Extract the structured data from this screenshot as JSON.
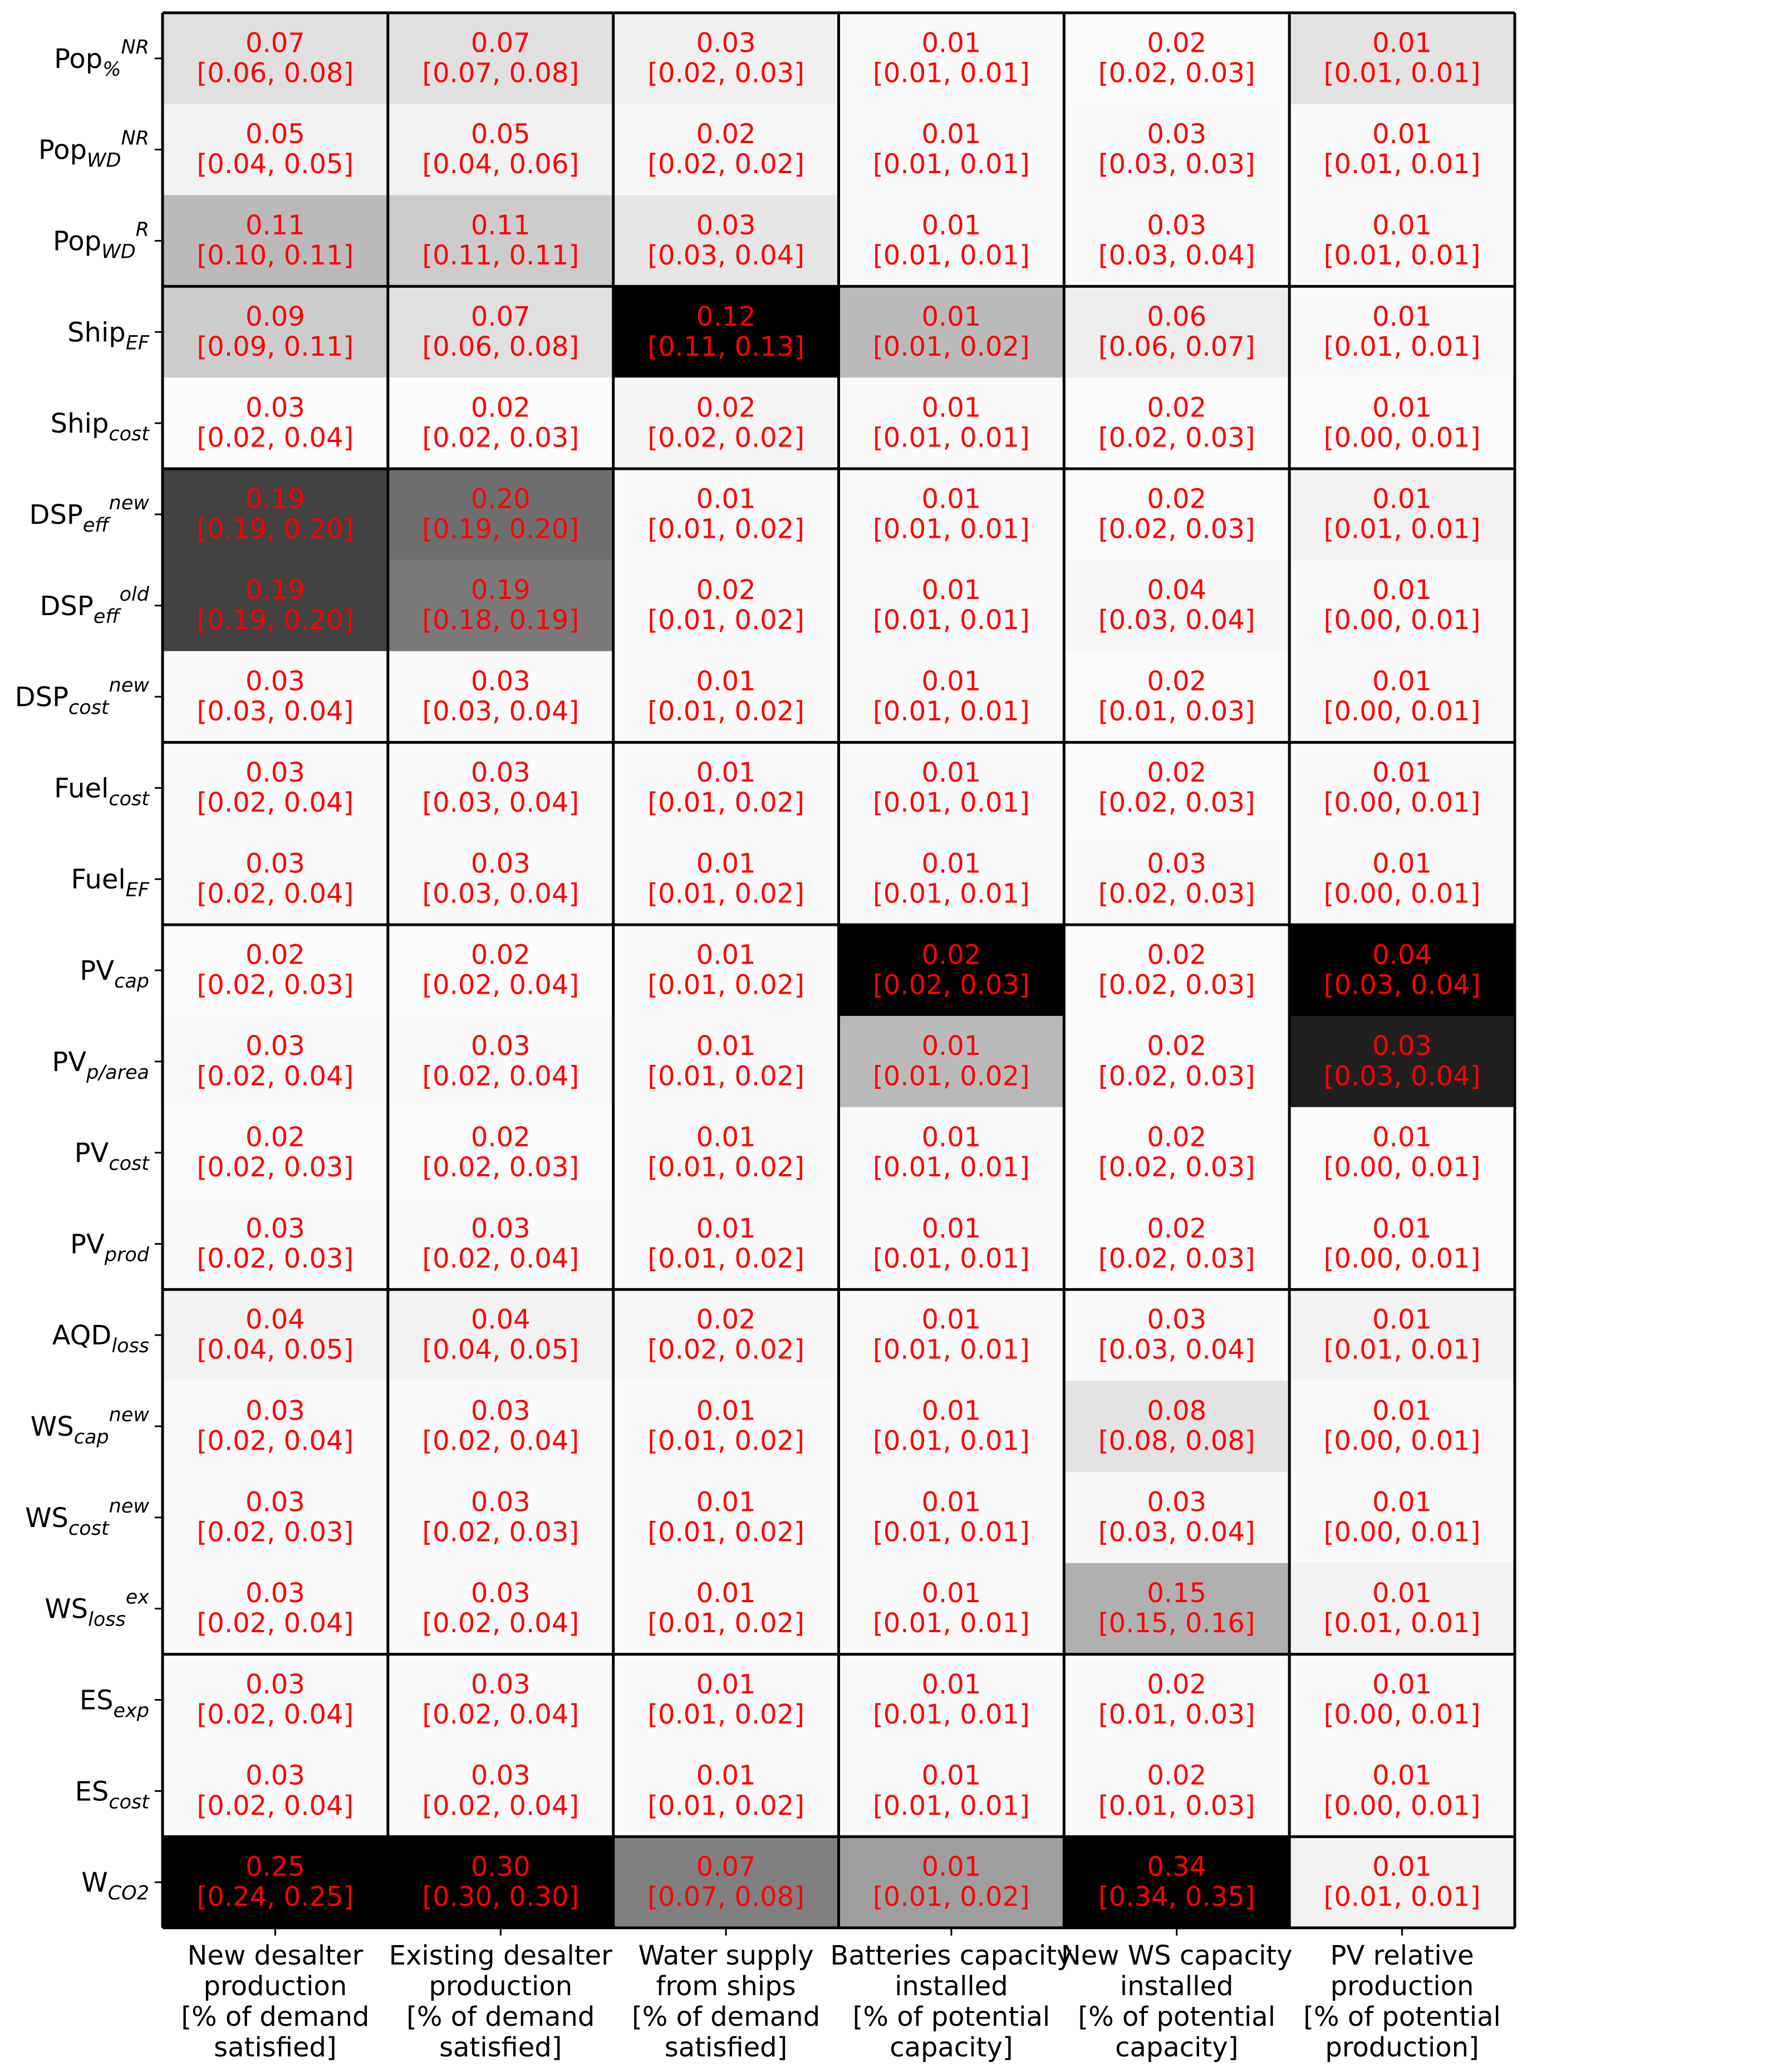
{
  "chart_data": {
    "type": "heatmap",
    "color_scale": "grayscale (white = low, black = high), scaled per column",
    "value_color": "#ff0000",
    "grid_color": "#000000",
    "row_groups": [
      3,
      2,
      3,
      2,
      4,
      4,
      2,
      1
    ],
    "rows": [
      {
        "base": "Pop",
        "sub": "%",
        "sup": "NR"
      },
      {
        "base": "Pop",
        "sub": "WD",
        "sup": "NR"
      },
      {
        "base": "Pop",
        "sub": "WD",
        "sup": "R"
      },
      {
        "base": "Ship",
        "sub": "EF",
        "sup": ""
      },
      {
        "base": "Ship",
        "sub": "cost",
        "sup": ""
      },
      {
        "base": "DSP",
        "sub": "eff",
        "sup": "new"
      },
      {
        "base": "DSP",
        "sub": "eff",
        "sup": "old"
      },
      {
        "base": "DSP",
        "sub": "cost",
        "sup": "new"
      },
      {
        "base": "Fuel",
        "sub": "cost",
        "sup": ""
      },
      {
        "base": "Fuel",
        "sub": "EF",
        "sup": ""
      },
      {
        "base": "PV",
        "sub": "cap",
        "sup": ""
      },
      {
        "base": "PV",
        "sub": "p/area",
        "sup": ""
      },
      {
        "base": "PV",
        "sub": "cost",
        "sup": ""
      },
      {
        "base": "PV",
        "sub": "prod",
        "sup": ""
      },
      {
        "base": "AQD",
        "sub": "loss",
        "sup": ""
      },
      {
        "base": "WS",
        "sub": "cap",
        "sup": "new"
      },
      {
        "base": "WS",
        "sub": "cost",
        "sup": "new"
      },
      {
        "base": "WS",
        "sub": "loss",
        "sup": "ex"
      },
      {
        "base": "ES",
        "sub": "exp",
        "sup": ""
      },
      {
        "base": "ES",
        "sub": "cost",
        "sup": ""
      },
      {
        "base": "W",
        "sub": "CO2",
        "sup": ""
      }
    ],
    "columns": [
      [
        "New desalter",
        "production",
        "[% of demand",
        "satisfied]"
      ],
      [
        "Existing desalter",
        "production",
        "[% of demand",
        "satisfied]"
      ],
      [
        "Water supply",
        "from ships",
        "[% of demand",
        "satisfied]"
      ],
      [
        "Batteries capacity",
        "installed",
        "[% of potential",
        "capacity]"
      ],
      [
        "New WS capacity",
        "installed",
        "[% of potential",
        "capacity]"
      ],
      [
        "PV relative",
        "production",
        "[% of potential",
        "production]"
      ]
    ],
    "values": [
      [
        "0.07",
        "0.07",
        "0.03",
        "0.01",
        "0.02",
        "0.01"
      ],
      [
        "0.05",
        "0.05",
        "0.02",
        "0.01",
        "0.03",
        "0.01"
      ],
      [
        "0.11",
        "0.11",
        "0.03",
        "0.01",
        "0.03",
        "0.01"
      ],
      [
        "0.09",
        "0.07",
        "0.12",
        "0.01",
        "0.06",
        "0.01"
      ],
      [
        "0.03",
        "0.02",
        "0.02",
        "0.01",
        "0.02",
        "0.01"
      ],
      [
        "0.19",
        "0.20",
        "0.01",
        "0.01",
        "0.02",
        "0.01"
      ],
      [
        "0.19",
        "0.19",
        "0.02",
        "0.01",
        "0.04",
        "0.01"
      ],
      [
        "0.03",
        "0.03",
        "0.01",
        "0.01",
        "0.02",
        "0.01"
      ],
      [
        "0.03",
        "0.03",
        "0.01",
        "0.01",
        "0.02",
        "0.01"
      ],
      [
        "0.03",
        "0.03",
        "0.01",
        "0.01",
        "0.03",
        "0.01"
      ],
      [
        "0.02",
        "0.02",
        "0.01",
        "0.02",
        "0.02",
        "0.04"
      ],
      [
        "0.03",
        "0.03",
        "0.01",
        "0.01",
        "0.02",
        "0.03"
      ],
      [
        "0.02",
        "0.02",
        "0.01",
        "0.01",
        "0.02",
        "0.01"
      ],
      [
        "0.03",
        "0.03",
        "0.01",
        "0.01",
        "0.02",
        "0.01"
      ],
      [
        "0.04",
        "0.04",
        "0.02",
        "0.01",
        "0.03",
        "0.01"
      ],
      [
        "0.03",
        "0.03",
        "0.01",
        "0.01",
        "0.08",
        "0.01"
      ],
      [
        "0.03",
        "0.03",
        "0.01",
        "0.01",
        "0.03",
        "0.01"
      ],
      [
        "0.03",
        "0.03",
        "0.01",
        "0.01",
        "0.15",
        "0.01"
      ],
      [
        "0.03",
        "0.03",
        "0.01",
        "0.01",
        "0.02",
        "0.01"
      ],
      [
        "0.03",
        "0.03",
        "0.01",
        "0.01",
        "0.02",
        "0.01"
      ],
      [
        "0.25",
        "0.30",
        "0.07",
        "0.01",
        "0.34",
        "0.01"
      ]
    ],
    "intervals": [
      [
        "[0.06, 0.08]",
        "[0.07, 0.08]",
        "[0.02, 0.03]",
        "[0.01, 0.01]",
        "[0.02, 0.03]",
        "[0.01, 0.01]"
      ],
      [
        "[0.04, 0.05]",
        "[0.04, 0.06]",
        "[0.02, 0.02]",
        "[0.01, 0.01]",
        "[0.03, 0.03]",
        "[0.01, 0.01]"
      ],
      [
        "[0.10, 0.11]",
        "[0.11, 0.11]",
        "[0.03, 0.04]",
        "[0.01, 0.01]",
        "[0.03, 0.04]",
        "[0.01, 0.01]"
      ],
      [
        "[0.09, 0.11]",
        "[0.06, 0.08]",
        "[0.11, 0.13]",
        "[0.01, 0.02]",
        "[0.06, 0.07]",
        "[0.01, 0.01]"
      ],
      [
        "[0.02, 0.04]",
        "[0.02, 0.03]",
        "[0.02, 0.02]",
        "[0.01, 0.01]",
        "[0.02, 0.03]",
        "[0.00, 0.01]"
      ],
      [
        "[0.19, 0.20]",
        "[0.19, 0.20]",
        "[0.01, 0.02]",
        "[0.01, 0.01]",
        "[0.02, 0.03]",
        "[0.01, 0.01]"
      ],
      [
        "[0.19, 0.20]",
        "[0.18, 0.19]",
        "[0.01, 0.02]",
        "[0.01, 0.01]",
        "[0.03, 0.04]",
        "[0.00, 0.01]"
      ],
      [
        "[0.03, 0.04]",
        "[0.03, 0.04]",
        "[0.01, 0.02]",
        "[0.01, 0.01]",
        "[0.01, 0.03]",
        "[0.00, 0.01]"
      ],
      [
        "[0.02, 0.04]",
        "[0.03, 0.04]",
        "[0.01, 0.02]",
        "[0.01, 0.01]",
        "[0.02, 0.03]",
        "[0.00, 0.01]"
      ],
      [
        "[0.02, 0.04]",
        "[0.03, 0.04]",
        "[0.01, 0.02]",
        "[0.01, 0.01]",
        "[0.02, 0.03]",
        "[0.00, 0.01]"
      ],
      [
        "[0.02, 0.03]",
        "[0.02, 0.04]",
        "[0.01, 0.02]",
        "[0.02, 0.03]",
        "[0.02, 0.03]",
        "[0.03, 0.04]"
      ],
      [
        "[0.02, 0.04]",
        "[0.02, 0.04]",
        "[0.01, 0.02]",
        "[0.01, 0.02]",
        "[0.02, 0.03]",
        "[0.03, 0.04]"
      ],
      [
        "[0.02, 0.03]",
        "[0.02, 0.03]",
        "[0.01, 0.02]",
        "[0.01, 0.01]",
        "[0.02, 0.03]",
        "[0.00, 0.01]"
      ],
      [
        "[0.02, 0.03]",
        "[0.02, 0.04]",
        "[0.01, 0.02]",
        "[0.01, 0.01]",
        "[0.02, 0.03]",
        "[0.00, 0.01]"
      ],
      [
        "[0.04, 0.05]",
        "[0.04, 0.05]",
        "[0.02, 0.02]",
        "[0.01, 0.01]",
        "[0.03, 0.04]",
        "[0.01, 0.01]"
      ],
      [
        "[0.02, 0.04]",
        "[0.02, 0.04]",
        "[0.01, 0.02]",
        "[0.01, 0.01]",
        "[0.08, 0.08]",
        "[0.00, 0.01]"
      ],
      [
        "[0.02, 0.03]",
        "[0.02, 0.03]",
        "[0.01, 0.02]",
        "[0.01, 0.01]",
        "[0.03, 0.04]",
        "[0.00, 0.01]"
      ],
      [
        "[0.02, 0.04]",
        "[0.02, 0.04]",
        "[0.01, 0.02]",
        "[0.01, 0.01]",
        "[0.15, 0.16]",
        "[0.01, 0.01]"
      ],
      [
        "[0.02, 0.04]",
        "[0.02, 0.04]",
        "[0.01, 0.02]",
        "[0.01, 0.01]",
        "[0.01, 0.03]",
        "[0.00, 0.01]"
      ],
      [
        "[0.02, 0.04]",
        "[0.02, 0.04]",
        "[0.01, 0.02]",
        "[0.01, 0.01]",
        "[0.01, 0.03]",
        "[0.00, 0.01]"
      ],
      [
        "[0.24, 0.25]",
        "[0.30, 0.30]",
        "[0.07, 0.08]",
        "[0.01, 0.02]",
        "[0.34, 0.35]",
        "[0.01, 0.01]"
      ]
    ],
    "shade_intensity": [
      [
        0.12,
        0.12,
        0.06,
        0.02,
        0.01,
        0.11
      ],
      [
        0.05,
        0.05,
        0.03,
        0.02,
        0.02,
        0.02
      ],
      [
        0.27,
        0.2,
        0.1,
        0.02,
        0.02,
        0.02
      ],
      [
        0.2,
        0.12,
        1.0,
        0.27,
        0.07,
        0.02
      ],
      [
        0.01,
        0.01,
        0.04,
        0.02,
        0.01,
        0.01
      ],
      [
        0.74,
        0.57,
        0.02,
        0.02,
        0.01,
        0.05
      ],
      [
        0.74,
        0.52,
        0.02,
        0.02,
        0.03,
        0.02
      ],
      [
        0.02,
        0.02,
        0.02,
        0.02,
        0.01,
        0.02
      ],
      [
        0.02,
        0.02,
        0.02,
        0.02,
        0.01,
        0.02
      ],
      [
        0.02,
        0.02,
        0.02,
        0.02,
        0.02,
        0.02
      ],
      [
        0.01,
        0.01,
        0.02,
        1.0,
        0.01,
        1.0
      ],
      [
        0.02,
        0.02,
        0.02,
        0.27,
        0.01,
        0.88
      ],
      [
        0.01,
        0.01,
        0.02,
        0.02,
        0.01,
        0.01
      ],
      [
        0.02,
        0.02,
        0.02,
        0.02,
        0.01,
        0.01
      ],
      [
        0.05,
        0.05,
        0.03,
        0.02,
        0.02,
        0.05
      ],
      [
        0.02,
        0.02,
        0.02,
        0.02,
        0.11,
        0.02
      ],
      [
        0.02,
        0.02,
        0.02,
        0.02,
        0.03,
        0.02
      ],
      [
        0.02,
        0.02,
        0.02,
        0.02,
        0.31,
        0.05
      ],
      [
        0.02,
        0.02,
        0.02,
        0.02,
        0.02,
        0.02
      ],
      [
        0.02,
        0.02,
        0.02,
        0.02,
        0.02,
        0.02
      ],
      [
        1.0,
        1.0,
        0.5,
        0.38,
        1.0,
        0.05
      ]
    ]
  }
}
